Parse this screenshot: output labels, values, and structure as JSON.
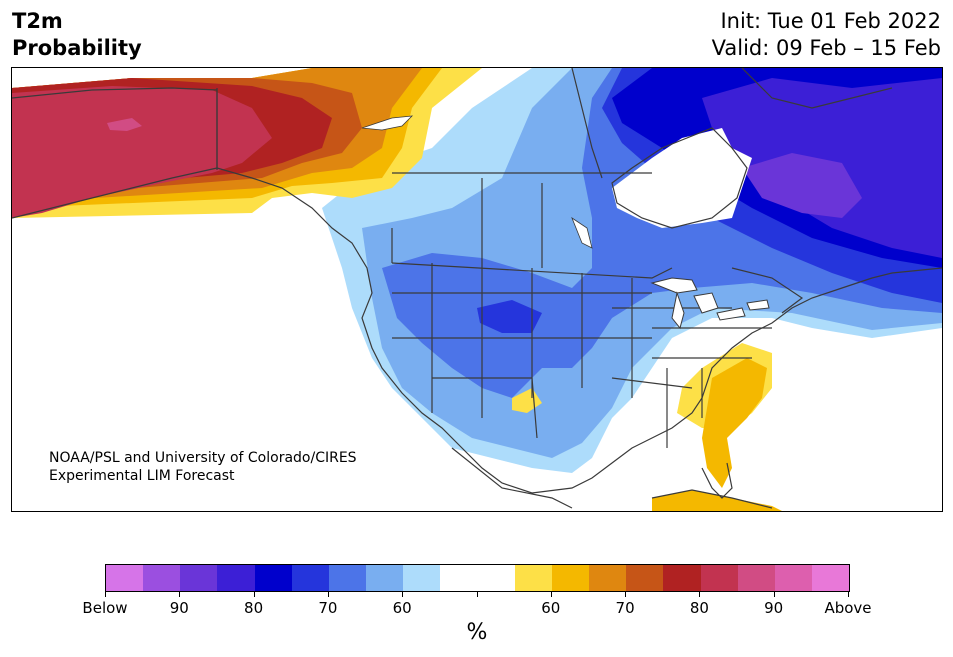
{
  "title": {
    "line1": "T2m",
    "line2": "Probability"
  },
  "dates": {
    "init": "Init: Tue 01 Feb 2022",
    "valid": "Valid: 09 Feb – 15 Feb"
  },
  "credit": {
    "line1": "NOAA/PSL and University of Colorado/CIRES",
    "line2": "Experimental LIM Forecast"
  },
  "colorbar": {
    "unit": "%",
    "colors": [
      "#d674e8",
      "#9b4fe0",
      "#6a35d8",
      "#3c1fd6",
      "#0000cc",
      "#2535dc",
      "#4c74e8",
      "#79aef0",
      "#addcfb",
      "#ffffff",
      "#ffffff",
      "#fde047",
      "#f4b800",
      "#df8710",
      "#c65517",
      "#b02222",
      "#c23350",
      "#d14c84",
      "#dd5fae",
      "#e878d8"
    ],
    "labels": [
      "Below",
      "90",
      "80",
      "70",
      "60",
      "",
      "60",
      "70",
      "80",
      "90",
      "Above"
    ]
  },
  "map": {
    "colors": {
      "below_60": "#addcfb",
      "below_70": "#79aef0",
      "below_75": "#4c74e8",
      "below_80": "#2535dc",
      "below_85": "#0000cc",
      "below_90": "#3c1fd6",
      "below_95": "#6a35d8",
      "above_60": "#fde047",
      "above_70": "#f4b800",
      "above_75": "#df8710",
      "above_80": "#c65517",
      "above_85": "#b02222",
      "above_90": "#c23350",
      "above_95": "#d14c84"
    }
  }
}
